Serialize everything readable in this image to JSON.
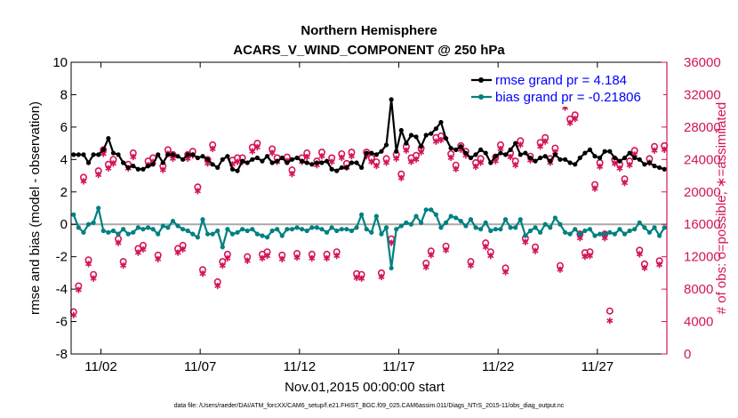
{
  "chart_data": {
    "type": "line",
    "title": "Northern Hemisphere",
    "subtitle": "ACARS_V_WIND_COMPONENT @ 250 hPa",
    "xlabel": "Nov.01,2015 00:00:00 start",
    "ylabel": "rmse and bias (model - observation)",
    "y2label": "# of obs: o=possible; ∗=assimilated",
    "footnote": "data file: /Users/raeder/DAI/ATM_forcXX/CAM6_setup/f.e21.FHIST_BGC.f09_025.CAM6assim.011/Diags_NTrS_2015-11/obs_diag_output.nc",
    "xlim": [
      0.5,
      30.5
    ],
    "ylim": [
      -8,
      10
    ],
    "y2lim": [
      0,
      36000
    ],
    "xtick_values": [
      2,
      7,
      12,
      17,
      22,
      27
    ],
    "xtick_labels": [
      "11/02",
      "11/07",
      "11/12",
      "11/17",
      "11/22",
      "11/27"
    ],
    "ytick_values": [
      -8,
      -6,
      -4,
      -2,
      0,
      2,
      4,
      6,
      8,
      10
    ],
    "ytick_labels": [
      "-8",
      "-6",
      "-4",
      "-2",
      "0",
      "2",
      "4",
      "6",
      "8",
      "10"
    ],
    "y2tick_values": [
      0,
      4000,
      8000,
      12000,
      16000,
      20000,
      24000,
      28000,
      32000,
      36000
    ],
    "y2tick_labels": [
      "0",
      "4000",
      "8000",
      "12000",
      "16000",
      "20000",
      "24000",
      "28000",
      "32000",
      "36000"
    ],
    "legend": [
      {
        "label": "rmse grand pr = 4.184",
        "color": "#000000"
      },
      {
        "label": "bias grand pr = -0.21806",
        "color": "#008080"
      }
    ],
    "zero_line": 0,
    "colors": {
      "rmse": "#000000",
      "bias": "#008080",
      "obs": "#d4145a",
      "zero": "#aaaaaa",
      "legend_text": "#0000ff"
    },
    "rmse": {
      "x": [
        0.625,
        0.875,
        1.125,
        1.375,
        1.625,
        1.875,
        2.125,
        2.375,
        2.625,
        2.875,
        3.125,
        3.375,
        3.625,
        3.875,
        4.125,
        4.375,
        4.625,
        4.875,
        5.125,
        5.375,
        5.625,
        5.875,
        6.125,
        6.375,
        6.625,
        6.875,
        7.125,
        7.375,
        7.625,
        7.875,
        8.125,
        8.375,
        8.625,
        8.875,
        9.125,
        9.375,
        9.625,
        9.875,
        10.125,
        10.375,
        10.625,
        10.875,
        11.125,
        11.375,
        11.625,
        11.875,
        12.125,
        12.375,
        12.625,
        12.875,
        13.125,
        13.375,
        13.625,
        13.875,
        14.125,
        14.375,
        14.625,
        14.875,
        15.125,
        15.375,
        15.625,
        15.875,
        16.125,
        16.375,
        16.625,
        16.875,
        17.125,
        17.375,
        17.625,
        17.875,
        18.125,
        18.375,
        18.625,
        18.875,
        19.125,
        19.375,
        19.625,
        19.875,
        20.125,
        20.375,
        20.625,
        20.875,
        21.125,
        21.375,
        21.625,
        21.875,
        22.125,
        22.375,
        22.625,
        22.875,
        23.125,
        23.375,
        23.625,
        23.875,
        24.125,
        24.375,
        24.625,
        24.875,
        25.125,
        25.375,
        25.625,
        25.875,
        26.125,
        26.375,
        26.625,
        26.875,
        27.125,
        27.375,
        27.625,
        27.875,
        28.125,
        28.375,
        28.625,
        28.875,
        29.125,
        29.375,
        29.625,
        29.875,
        30.125,
        30.375
      ],
      "y": [
        4.3,
        4.3,
        4.3,
        3.8,
        4.3,
        4.3,
        4.6,
        5.3,
        4.4,
        4.3,
        3.8,
        3.5,
        3.6,
        3.4,
        3.4,
        3.6,
        3.7,
        4.3,
        3.8,
        4.3,
        4.3,
        4.2,
        4.0,
        4.3,
        4.3,
        4.1,
        4.2,
        4.0,
        3.7,
        3.5,
        4.0,
        4.2,
        3.4,
        3.3,
        3.9,
        3.8,
        4.0,
        4.1,
        3.9,
        4.2,
        3.8,
        3.9,
        4.1,
        3.8,
        4.0,
        4.1,
        3.9,
        3.8,
        3.7,
        3.8,
        3.8,
        3.9,
        3.4,
        3.3,
        3.5,
        3.5,
        3.8,
        3.8,
        3.5,
        4.4,
        4.4,
        4.3,
        4.5,
        4.9,
        7.7,
        4.5,
        5.8,
        5.0,
        5.5,
        5.4,
        4.8,
        5.5,
        5.6,
        5.9,
        6.3,
        5.3,
        4.7,
        4.6,
        4.8,
        4.4,
        4.1,
        4.3,
        4.6,
        4.4,
        3.8,
        4.2,
        4.4,
        4.3,
        4.6,
        5.0,
        4.3,
        4.4,
        4.1,
        3.9,
        4.1,
        4.2,
        3.9,
        4.3,
        4.0,
        4.0,
        3.8,
        3.7,
        4.1,
        4.4,
        4.6,
        4.2,
        4.1,
        4.5,
        4.5,
        4.1,
        3.9,
        4.1,
        4.4,
        4.1,
        4.0,
        3.7,
        3.8,
        3.6,
        3.5,
        3.4
      ]
    },
    "bias": {
      "x": [
        0.625,
        0.875,
        1.125,
        1.375,
        1.625,
        1.875,
        2.125,
        2.375,
        2.625,
        2.875,
        3.125,
        3.375,
        3.625,
        3.875,
        4.125,
        4.375,
        4.625,
        4.875,
        5.125,
        5.375,
        5.625,
        5.875,
        6.125,
        6.375,
        6.625,
        6.875,
        7.125,
        7.375,
        7.625,
        7.875,
        8.125,
        8.375,
        8.625,
        8.875,
        9.125,
        9.375,
        9.625,
        9.875,
        10.125,
        10.375,
        10.625,
        10.875,
        11.125,
        11.375,
        11.625,
        11.875,
        12.125,
        12.375,
        12.625,
        12.875,
        13.125,
        13.375,
        13.625,
        13.875,
        14.125,
        14.375,
        14.625,
        14.875,
        15.125,
        15.375,
        15.625,
        15.875,
        16.125,
        16.375,
        16.625,
        16.875,
        17.125,
        17.375,
        17.625,
        17.875,
        18.125,
        18.375,
        18.625,
        18.875,
        19.125,
        19.375,
        19.625,
        19.875,
        20.125,
        20.375,
        20.625,
        20.875,
        21.125,
        21.375,
        21.625,
        21.875,
        22.125,
        22.375,
        22.625,
        22.875,
        23.125,
        23.375,
        23.625,
        23.875,
        24.125,
        24.375,
        24.625,
        24.875,
        25.125,
        25.375,
        25.625,
        25.875,
        26.125,
        26.375,
        26.625,
        26.875,
        27.125,
        27.375,
        27.625,
        27.875,
        28.125,
        28.375,
        28.625,
        28.875,
        29.125,
        29.375,
        29.625,
        29.875,
        30.125,
        30.375
      ],
      "y": [
        0.6,
        -0.2,
        -0.5,
        0.0,
        0.1,
        1.0,
        -0.4,
        -0.5,
        -0.4,
        -0.6,
        -0.3,
        -0.6,
        -0.5,
        -0.2,
        -0.3,
        -0.2,
        -0.3,
        -0.6,
        -0.1,
        -0.2,
        0.2,
        -0.1,
        -0.3,
        -0.4,
        -0.6,
        -0.8,
        0.3,
        -0.6,
        -0.6,
        -0.4,
        -1.4,
        -0.3,
        -0.6,
        -0.5,
        -0.3,
        -0.4,
        -0.3,
        -0.6,
        -0.7,
        -0.8,
        -0.4,
        -0.3,
        -0.7,
        -0.3,
        -0.3,
        -0.2,
        -0.3,
        -0.4,
        -0.2,
        -0.2,
        -0.3,
        -0.5,
        -0.2,
        -0.4,
        -0.3,
        -0.3,
        -0.4,
        -0.2,
        0.6,
        -0.3,
        -0.5,
        0.5,
        -0.6,
        -0.2,
        -2.7,
        -0.3,
        -0.1,
        0.1,
        0.0,
        0.5,
        0.1,
        0.9,
        0.9,
        0.6,
        -0.2,
        0.1,
        0.5,
        0.4,
        0.2,
        -0.1,
        0.3,
        -0.2,
        -0.3,
        0.1,
        -0.4,
        -0.3,
        -0.3,
        0.3,
        -0.2,
        -0.2,
        0.3,
        -0.7,
        -0.4,
        -0.2,
        -0.5,
        0.0,
        -0.2,
        0.4,
        0.0,
        -0.5,
        -0.6,
        -0.3,
        -0.6,
        -0.4,
        -0.3,
        -0.7,
        -0.6,
        -0.6,
        -0.5,
        -0.6,
        -0.3,
        -0.6,
        -0.4,
        -0.3,
        0.1,
        -0.2,
        -0.5,
        -0.2,
        -0.7,
        -0.2
      ]
    },
    "obs_possible": {
      "x": [
        0.625,
        0.875,
        1.125,
        1.375,
        1.625,
        1.875,
        2.125,
        2.375,
        2.625,
        2.875,
        3.125,
        3.375,
        3.625,
        3.875,
        4.125,
        4.375,
        4.625,
        4.875,
        5.125,
        5.375,
        5.625,
        5.875,
        6.125,
        6.375,
        6.625,
        6.875,
        7.125,
        7.375,
        7.625,
        7.875,
        8.125,
        8.375,
        8.625,
        8.875,
        9.125,
        9.375,
        9.625,
        9.875,
        10.125,
        10.375,
        10.625,
        10.875,
        11.125,
        11.375,
        11.625,
        11.875,
        12.125,
        12.375,
        12.625,
        12.875,
        13.125,
        13.375,
        13.625,
        13.875,
        14.125,
        14.375,
        14.625,
        14.875,
        15.125,
        15.375,
        15.625,
        15.875,
        16.125,
        16.375,
        16.625,
        16.875,
        17.125,
        17.375,
        17.625,
        17.875,
        18.125,
        18.375,
        18.625,
        18.875,
        19.125,
        19.375,
        19.625,
        19.875,
        20.125,
        20.375,
        20.625,
        20.875,
        21.125,
        21.375,
        21.625,
        21.875,
        22.125,
        22.375,
        22.625,
        22.875,
        23.125,
        23.375,
        23.625,
        23.875,
        24.125,
        24.375,
        24.625,
        24.875,
        25.125,
        25.375,
        25.625,
        25.875,
        26.125,
        26.375,
        26.625,
        26.875,
        27.125,
        27.375,
        27.625,
        27.875,
        28.125,
        28.375,
        28.625,
        28.875,
        29.125,
        29.375,
        29.625,
        29.875,
        30.125,
        30.375
      ],
      "y": [
        5200,
        8400,
        21800,
        11600,
        9800,
        22600,
        25200,
        23400,
        24000,
        14200,
        11400,
        23400,
        24800,
        13000,
        13400,
        23800,
        24200,
        12200,
        23200,
        25200,
        24600,
        13000,
        13400,
        24600,
        25000,
        20600,
        10400,
        24000,
        25800,
        8900,
        11400,
        12300,
        23900,
        24200,
        24200,
        12000,
        25500,
        26000,
        12300,
        12600,
        25300,
        24200,
        12200,
        24300,
        22700,
        12400,
        24200,
        24800,
        12300,
        23800,
        24900,
        12300,
        24200,
        12600,
        24700,
        23500,
        24900,
        9900,
        9800,
        24900,
        24200,
        23700,
        10000,
        24100,
        14200,
        24600,
        22200,
        25600,
        24200,
        24500,
        25400,
        11200,
        12700,
        26700,
        26900,
        13300,
        24700,
        23300,
        25700,
        25000,
        11400,
        23600,
        24100,
        13700,
        12600,
        24300,
        25800,
        10600,
        24800,
        23800,
        26300,
        14300,
        24400,
        13200,
        26100,
        26700,
        24100,
        25400,
        10900,
        30900,
        29000,
        29500,
        14800,
        12500,
        12600,
        20900,
        23600,
        14800,
        5300,
        24000,
        23400,
        21600,
        23800,
        25100,
        12800,
        11100,
        24100,
        25600,
        11500,
        25700
      ]
    },
    "obs_assimilated": {
      "x": [
        0.625,
        0.875,
        1.125,
        1.375,
        1.625,
        1.875,
        2.125,
        2.375,
        2.625,
        2.875,
        3.125,
        3.375,
        3.625,
        3.875,
        4.125,
        4.375,
        4.625,
        4.875,
        5.125,
        5.375,
        5.625,
        5.875,
        6.125,
        6.375,
        6.625,
        6.875,
        7.125,
        7.375,
        7.625,
        7.875,
        8.125,
        8.375,
        8.625,
        8.875,
        9.125,
        9.375,
        9.625,
        9.875,
        10.125,
        10.375,
        10.625,
        10.875,
        11.125,
        11.375,
        11.625,
        11.875,
        12.125,
        12.375,
        12.625,
        12.875,
        13.125,
        13.375,
        13.625,
        13.875,
        14.125,
        14.375,
        14.625,
        14.875,
        15.125,
        15.375,
        15.625,
        15.875,
        16.125,
        16.375,
        16.625,
        16.875,
        17.125,
        17.375,
        17.625,
        17.875,
        18.125,
        18.375,
        18.625,
        18.875,
        19.125,
        19.375,
        19.625,
        19.875,
        20.125,
        20.375,
        20.625,
        20.875,
        21.125,
        21.375,
        21.625,
        21.875,
        22.125,
        22.375,
        22.625,
        22.875,
        23.125,
        23.375,
        23.625,
        23.875,
        24.125,
        24.375,
        24.625,
        24.875,
        25.125,
        25.375,
        25.625,
        25.875,
        26.125,
        26.375,
        26.625,
        26.875,
        27.125,
        27.375,
        27.625,
        27.875,
        28.125,
        28.375,
        28.625,
        28.875,
        29.125,
        29.375,
        29.625,
        29.875,
        30.125,
        30.375
      ],
      "y": [
        4800,
        7900,
        21300,
        11100,
        9300,
        22100,
        24700,
        22900,
        23500,
        13700,
        10900,
        22900,
        24300,
        12500,
        12900,
        23300,
        23700,
        11700,
        22700,
        24700,
        24100,
        12500,
        12900,
        24100,
        24500,
        20100,
        9900,
        23500,
        25300,
        8400,
        10900,
        11800,
        23400,
        23700,
        23700,
        11500,
        25000,
        25500,
        11800,
        12100,
        24800,
        23700,
        11700,
        23800,
        22200,
        11900,
        23700,
        24300,
        11800,
        23300,
        24400,
        11800,
        23700,
        12100,
        24200,
        23000,
        24400,
        9400,
        9300,
        24400,
        23700,
        23200,
        9500,
        23600,
        13700,
        24100,
        21700,
        25100,
        23700,
        24000,
        24900,
        10700,
        12200,
        26200,
        26400,
        12800,
        24200,
        22800,
        25200,
        24500,
        10900,
        23100,
        23600,
        13200,
        12100,
        23800,
        25300,
        10100,
        24300,
        23300,
        25800,
        13800,
        23900,
        12700,
        25600,
        26200,
        23600,
        24900,
        10400,
        30400,
        28500,
        29000,
        14300,
        12000,
        12100,
        20400,
        23100,
        14300,
        4100,
        23500,
        22900,
        21100,
        23300,
        24600,
        12300,
        10600,
        23600,
        25100,
        11000,
        25200
      ]
    }
  }
}
